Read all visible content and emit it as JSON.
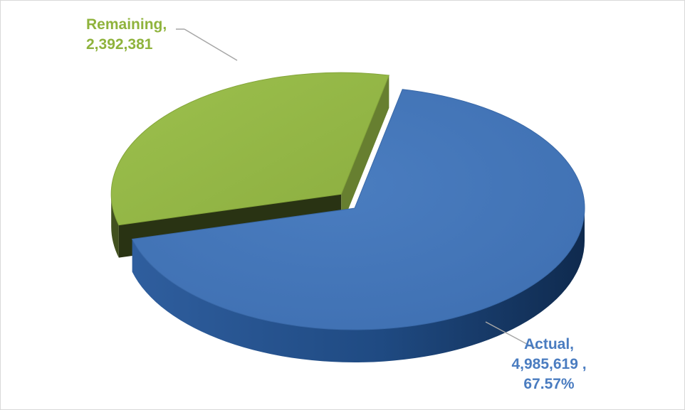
{
  "chart_data": {
    "type": "pie",
    "style": "3d",
    "slices": [
      {
        "name": "Actual",
        "value": 4985619,
        "percent": 67.57,
        "label_line1": "Actual,",
        "label_line2": "4,985,619 ,",
        "label_line3": "67.57%",
        "color": "#4575b9",
        "exploded": false
      },
      {
        "name": "Remaining",
        "value": 2392381,
        "percent": 32.43,
        "label_line1": "Remaining,",
        "label_line2": "2,392,381",
        "color": "#93b545",
        "exploded": true
      }
    ],
    "label_colors": {
      "Actual": "#4a7cc0",
      "Remaining": "#8fb33c"
    },
    "leader_line_color": "#a6a6a6",
    "legend": "none"
  }
}
